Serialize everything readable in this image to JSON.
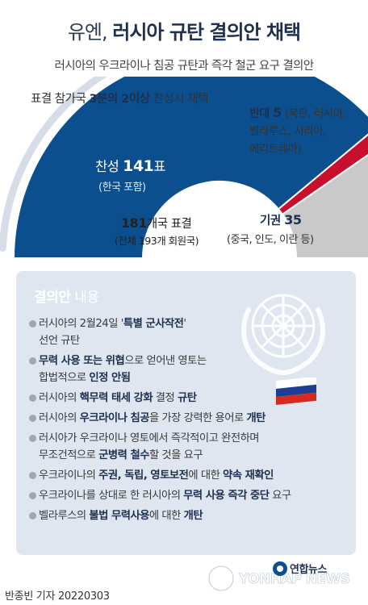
{
  "title_a": "유엔, ",
  "title_b": "러시아 규탄 결의안 채택",
  "subtitle": "러시아의 우크라이나 침공 규탄과 즉각 철군 요구 결의안",
  "arc_note": {
    "a": "표결 참가국 ",
    "b": "3분의 2이상",
    "c": " 찬성시 채택"
  },
  "chart_data": {
    "type": "pie",
    "subtype": "semicircle",
    "total_label": "181개국 표결",
    "total_sub": "(전체 193개 회원국)",
    "slices": [
      {
        "label": "찬성",
        "value": 141,
        "unit": "표",
        "note": "(한국 포함)",
        "color": "#0b4f8f"
      },
      {
        "label": "반대",
        "value": 5,
        "unit": "",
        "note": "(북한, 러시아, 벨라루스, 시리아, 에리트레아)",
        "color": "#c8102e"
      },
      {
        "label": "기권",
        "value": 35,
        "unit": "",
        "note": "(중국, 인도, 이란 등)",
        "color": "#c9c9c9"
      }
    ],
    "threshold_fraction": 0.667
  },
  "yes_label": "찬성 ",
  "yes_value": "141",
  "yes_unit": "표",
  "yes_note": "(한국 포함)",
  "no_label": "반대 ",
  "no_value": "5",
  "no_note_l1": " (북한, 러시아,",
  "no_note_l2": "벨라루스, 시리아,",
  "no_note_l3": "에리트레아)",
  "abs_label": "기권 ",
  "abs_value": "35",
  "abs_note": "(중국, 인도, 이란 등)",
  "total_num": "181",
  "total_rest": "개국 표결",
  "total_sub": "(전체 193개 회원국)",
  "panel": {
    "title_a": "결의안",
    "title_b": " 내용",
    "items": [
      [
        {
          "t": "러시아의 2월24일 '"
        },
        {
          "t": "특별 군사작전",
          "b": true
        },
        {
          "t": "'"
        },
        {
          "br": true
        },
        {
          "t": "선언 규탄"
        }
      ],
      [
        {
          "t": "무력 사용 또는 위협",
          "b": true
        },
        {
          "t": "으로 얻어낸 영토는"
        },
        {
          "br": true
        },
        {
          "t": "합법적으로 "
        },
        {
          "t": "인정 안됨",
          "b": true
        }
      ],
      [
        {
          "t": "러시아의 "
        },
        {
          "t": "핵무력 태세 강화",
          "b": true
        },
        {
          "t": " 결정 "
        },
        {
          "t": "규탄",
          "b": true
        }
      ],
      [
        {
          "t": "러시아의 "
        },
        {
          "t": "우크라이나 침공",
          "b": true
        },
        {
          "t": "을 가장 강력한 용어로 "
        },
        {
          "t": "개탄",
          "b": true
        }
      ],
      [
        {
          "t": "러시아가 우크라이나 영토에서 즉각적이고 완전하며"
        },
        {
          "br": true
        },
        {
          "t": "무조건적으로 "
        },
        {
          "t": "군병력 철수",
          "b": true
        },
        {
          "t": "할 것을 요구"
        }
      ],
      [
        {
          "t": "우크라이나의 "
        },
        {
          "t": "주권, 독립, 영토보전",
          "b": true
        },
        {
          "t": "에 대한 "
        },
        {
          "t": "약속 재확인",
          "b": true
        }
      ],
      [
        {
          "t": "우크라이나를 상대로 한 러시아의 "
        },
        {
          "t": "무력 사용 즉각 중단",
          "b": true
        },
        {
          "t": " 요구"
        }
      ],
      [
        {
          "t": "벨라루스의 "
        },
        {
          "t": "불법 무력사용",
          "b": true
        },
        {
          "t": "에 대한 "
        },
        {
          "t": "개탄",
          "b": true
        }
      ]
    ]
  },
  "logo_text": "연합뉴스",
  "watermark_text": "YONHAP NEWS",
  "footer": "반종빈 기자  20220303",
  "icons": [
    "un-emblem-icon",
    "russia-flag-icon",
    "yonhap-logo-icon"
  ]
}
